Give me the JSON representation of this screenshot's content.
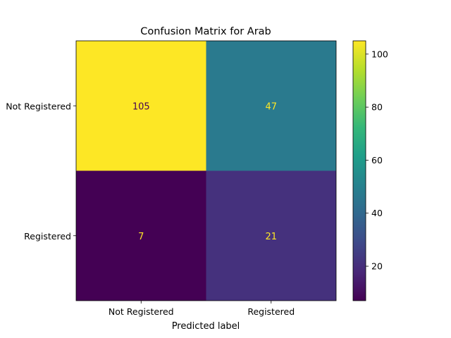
{
  "chart_data": {
    "type": "heatmap",
    "title": "Confusion Matrix for Arab",
    "xlabel": "Predicted label",
    "ylabel": "",
    "x_categories": [
      "Not Registered",
      "Registered"
    ],
    "y_categories": [
      "Not Registered",
      "Registered"
    ],
    "values": [
      [
        105,
        47
      ],
      [
        7,
        21
      ]
    ],
    "colormap": "viridis",
    "colorbar": {
      "min": 7,
      "max": 105,
      "ticks": [
        20,
        40,
        60,
        80,
        100
      ]
    },
    "text_colors": {
      "on_dark": "#fde725",
      "on_light": "#440154"
    }
  }
}
